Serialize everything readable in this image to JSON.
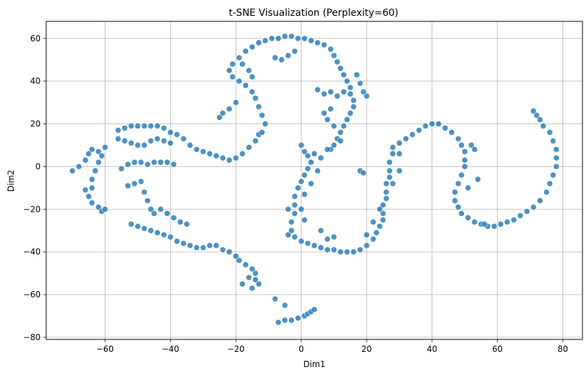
{
  "chart_data": {
    "type": "scatter",
    "title": "t-SNE Visualization (Perplexity=60)",
    "xlabel": "Dim1",
    "ylabel": "Dim2",
    "xlim": [
      -78,
      86
    ],
    "ylim": [
      -81,
      68
    ],
    "xticks": [
      -60,
      -40,
      -20,
      0,
      20,
      40,
      60,
      80
    ],
    "yticks": [
      -80,
      -60,
      -40,
      -20,
      0,
      20,
      40,
      60
    ],
    "xtick_labels": [
      "−60",
      "−40",
      "−20",
      "0",
      "20",
      "40",
      "60",
      "80"
    ],
    "ytick_labels": [
      "−80",
      "−60",
      "−40",
      "−20",
      "0",
      "20",
      "40",
      "60"
    ],
    "grid": true,
    "marker_color": "#1f77b4",
    "marker_edge_color": "#ffffff",
    "series": [
      {
        "points": [
          [
            -70,
            -2
          ],
          [
            -68,
            0
          ],
          [
            -66,
            3
          ],
          [
            -65,
            6
          ],
          [
            -64,
            8
          ],
          [
            -62,
            7
          ],
          [
            -61,
            5
          ],
          [
            -60,
            9
          ],
          [
            -62,
            2
          ],
          [
            -63,
            -2
          ],
          [
            -64,
            -6
          ],
          [
            -64,
            -10
          ],
          [
            -66,
            -11
          ],
          [
            -65,
            -14
          ],
          [
            -64,
            -17
          ],
          [
            -62,
            -19
          ],
          [
            -61,
            -21
          ],
          [
            -60,
            -20
          ],
          [
            -56,
            17
          ],
          [
            -54,
            18
          ],
          [
            -52,
            19
          ],
          [
            -50,
            19
          ],
          [
            -48,
            19
          ],
          [
            -46,
            19
          ],
          [
            -44,
            19
          ],
          [
            -42,
            18
          ],
          [
            -40,
            16
          ],
          [
            -38,
            15
          ],
          [
            -36,
            13
          ],
          [
            -34,
            10
          ],
          [
            -32,
            8
          ],
          [
            -30,
            7
          ],
          [
            -28,
            6
          ],
          [
            -26,
            5
          ],
          [
            -24,
            4
          ],
          [
            -22,
            3
          ],
          [
            -20,
            4
          ],
          [
            -18,
            6
          ],
          [
            -16,
            9
          ],
          [
            -14,
            12
          ],
          [
            -13,
            15
          ],
          [
            -56,
            13
          ],
          [
            -54,
            12
          ],
          [
            -52,
            11
          ],
          [
            -50,
            10
          ],
          [
            -48,
            10
          ],
          [
            -46,
            12
          ],
          [
            -44,
            13
          ],
          [
            -42,
            12
          ],
          [
            -40,
            11
          ],
          [
            -55,
            -1
          ],
          [
            -53,
            1
          ],
          [
            -51,
            2
          ],
          [
            -49,
            2
          ],
          [
            -47,
            1
          ],
          [
            -45,
            2
          ],
          [
            -43,
            2
          ],
          [
            -41,
            2
          ],
          [
            -39,
            1
          ],
          [
            -53,
            -9
          ],
          [
            -51,
            -8
          ],
          [
            -49,
            -7
          ],
          [
            -48,
            -12
          ],
          [
            -47,
            -16
          ],
          [
            -46,
            -20
          ],
          [
            -45,
            -22
          ],
          [
            -43,
            -20
          ],
          [
            -41,
            -22
          ],
          [
            -39,
            -24
          ],
          [
            -37,
            -26
          ],
          [
            -35,
            -27
          ],
          [
            -52,
            -27
          ],
          [
            -50,
            -28
          ],
          [
            -48,
            -29
          ],
          [
            -46,
            -30
          ],
          [
            -44,
            -31
          ],
          [
            -42,
            -32
          ],
          [
            -40,
            -33
          ],
          [
            -38,
            -35
          ],
          [
            -36,
            -36
          ],
          [
            -34,
            -37
          ],
          [
            -32,
            -38
          ],
          [
            -30,
            -38
          ],
          [
            -28,
            -37
          ],
          [
            -26,
            -37
          ],
          [
            -24,
            -39
          ],
          [
            -22,
            -40
          ],
          [
            -20,
            -42
          ],
          [
            -19,
            -44
          ],
          [
            -17,
            -46
          ],
          [
            -15,
            -48
          ],
          [
            -14,
            -50
          ],
          [
            -14,
            -53
          ],
          [
            -13,
            -55
          ],
          [
            -16,
            -52
          ],
          [
            -18,
            -55
          ],
          [
            -15,
            -57
          ],
          [
            -8,
            -62
          ],
          [
            -5,
            -65
          ],
          [
            -7,
            -73
          ],
          [
            -5,
            -72
          ],
          [
            -3,
            -72
          ],
          [
            -1,
            -71
          ],
          [
            1,
            -70
          ],
          [
            2,
            -69
          ],
          [
            3,
            -68
          ],
          [
            4,
            -67
          ],
          [
            -12,
            16
          ],
          [
            -11,
            20
          ],
          [
            -12,
            24
          ],
          [
            -13,
            28
          ],
          [
            -14,
            32
          ],
          [
            -15,
            35
          ],
          [
            -17,
            38
          ],
          [
            -19,
            40
          ],
          [
            -21,
            42
          ],
          [
            -22,
            45
          ],
          [
            -21,
            48
          ],
          [
            -19,
            51
          ],
          [
            -17,
            54
          ],
          [
            -15,
            56
          ],
          [
            -13,
            58
          ],
          [
            -11,
            59
          ],
          [
            -9,
            60
          ],
          [
            -7,
            60
          ],
          [
            -5,
            61
          ],
          [
            -3,
            61
          ],
          [
            -1,
            60
          ],
          [
            1,
            60
          ],
          [
            3,
            59
          ],
          [
            5,
            58
          ],
          [
            7,
            57
          ],
          [
            9,
            55
          ],
          [
            10,
            52
          ],
          [
            11,
            49
          ],
          [
            12,
            46
          ],
          [
            13,
            43
          ],
          [
            14,
            40
          ],
          [
            15,
            37
          ],
          [
            15,
            34
          ],
          [
            16,
            31
          ],
          [
            16,
            28
          ],
          [
            15,
            25
          ],
          [
            14,
            22
          ],
          [
            13,
            19
          ],
          [
            12,
            16
          ],
          [
            11,
            13
          ],
          [
            10,
            10
          ],
          [
            9,
            8
          ],
          [
            -20,
            30
          ],
          [
            -22,
            27
          ],
          [
            -24,
            25
          ],
          [
            -25,
            23
          ],
          [
            -18,
            48
          ],
          [
            -16,
            45
          ],
          [
            -15,
            42
          ],
          [
            -8,
            51
          ],
          [
            -6,
            50
          ],
          [
            -4,
            52
          ],
          [
            -2,
            54
          ],
          [
            5,
            36
          ],
          [
            7,
            34
          ],
          [
            9,
            35
          ],
          [
            11,
            33
          ],
          [
            13,
            35
          ],
          [
            17,
            43
          ],
          [
            18,
            39
          ],
          [
            19,
            35
          ],
          [
            20,
            33
          ],
          [
            7,
            25
          ],
          [
            9,
            27
          ],
          [
            8,
            22
          ],
          [
            10,
            19
          ],
          [
            12,
            12
          ],
          [
            0,
            10
          ],
          [
            1,
            7
          ],
          [
            2,
            5
          ],
          [
            3,
            2
          ],
          [
            2,
            -1
          ],
          [
            1,
            -4
          ],
          [
            0,
            -7
          ],
          [
            -1,
            -10
          ],
          [
            -2,
            -14
          ],
          [
            -2,
            -18
          ],
          [
            -2,
            -22
          ],
          [
            -3,
            -26
          ],
          [
            -3,
            -30
          ],
          [
            -2,
            -33
          ],
          [
            0,
            -35
          ],
          [
            2,
            -36
          ],
          [
            4,
            -37
          ],
          [
            6,
            -38
          ],
          [
            8,
            -39
          ],
          [
            10,
            -39
          ],
          [
            12,
            -40
          ],
          [
            14,
            -40
          ],
          [
            16,
            -40
          ],
          [
            18,
            -39
          ],
          [
            20,
            -37
          ],
          [
            22,
            -34
          ],
          [
            23,
            -31
          ],
          [
            24,
            -28
          ],
          [
            25,
            -25
          ],
          [
            25,
            -22
          ],
          [
            25,
            -18
          ],
          [
            26,
            -15
          ],
          [
            26,
            -12
          ],
          [
            26,
            -8
          ],
          [
            27,
            -5
          ],
          [
            27,
            -2
          ],
          [
            27,
            2
          ],
          [
            28,
            6
          ],
          [
            28,
            9
          ],
          [
            30,
            11
          ],
          [
            32,
            13
          ],
          [
            34,
            15
          ],
          [
            36,
            17
          ],
          [
            38,
            19
          ],
          [
            40,
            20
          ],
          [
            42,
            20
          ],
          [
            44,
            18
          ],
          [
            46,
            16
          ],
          [
            48,
            13
          ],
          [
            49,
            10
          ],
          [
            50,
            7
          ],
          [
            50,
            3
          ],
          [
            50,
            0
          ],
          [
            49,
            -4
          ],
          [
            48,
            -8
          ],
          [
            47,
            -12
          ],
          [
            47,
            -16
          ],
          [
            48,
            -19
          ],
          [
            49,
            -22
          ],
          [
            51,
            -24
          ],
          [
            53,
            -26
          ],
          [
            55,
            -27
          ],
          [
            57,
            -28
          ],
          [
            59,
            -28
          ],
          [
            61,
            -27
          ],
          [
            63,
            -26
          ],
          [
            65,
            -25
          ],
          [
            67,
            -23
          ],
          [
            69,
            -21
          ],
          [
            71,
            -19
          ],
          [
            73,
            -16
          ],
          [
            75,
            -12
          ],
          [
            76,
            -8
          ],
          [
            77,
            -4
          ],
          [
            78,
            0
          ],
          [
            78,
            4
          ],
          [
            78,
            8
          ],
          [
            77,
            12
          ],
          [
            76,
            16
          ],
          [
            74,
            19
          ],
          [
            73,
            22
          ],
          [
            72,
            24
          ],
          [
            71,
            26
          ],
          [
            4,
            6
          ],
          [
            6,
            4
          ],
          [
            8,
            8
          ],
          [
            5,
            -2
          ],
          [
            3,
            -8
          ],
          [
            1,
            -13
          ],
          [
            0,
            -20
          ],
          [
            1,
            -25
          ],
          [
            -4,
            -32
          ],
          [
            -4,
            -20
          ],
          [
            8,
            -34
          ],
          [
            6,
            -30
          ],
          [
            10,
            -33
          ],
          [
            20,
            -32
          ],
          [
            22,
            -26
          ],
          [
            24,
            -20
          ],
          [
            28,
            -8
          ],
          [
            30,
            -2
          ],
          [
            30,
            6
          ],
          [
            18,
            -2
          ],
          [
            19,
            -3
          ],
          [
            52,
            10
          ],
          [
            53,
            8
          ],
          [
            54,
            -6
          ],
          [
            51,
            -10
          ],
          [
            56,
            -27
          ]
        ]
      }
    ]
  }
}
